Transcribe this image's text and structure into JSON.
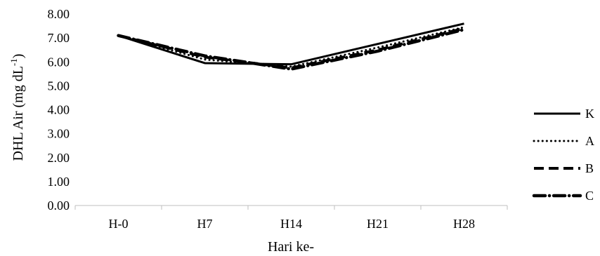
{
  "chart_data": {
    "type": "line",
    "title": "",
    "xlabel": "Hari ke-",
    "ylabel": "DHL Air (mg dL",
    "ylabel_sup": "-1",
    "ylabel_close": ")",
    "categories": [
      "H-0",
      "H7",
      "H14",
      "H21",
      "H28"
    ],
    "ylim": [
      0,
      8
    ],
    "yticks": [
      "0.00",
      "1.00",
      "2.00",
      "3.00",
      "4.00",
      "5.00",
      "6.00",
      "7.00",
      "8.00"
    ],
    "grid": false,
    "legend_position": "right",
    "series": [
      {
        "name": "K",
        "values": [
          7.1,
          5.95,
          5.9,
          6.75,
          7.6
        ],
        "color": "#000000",
        "style": "solid"
      },
      {
        "name": "A",
        "values": [
          7.1,
          6.1,
          5.8,
          6.6,
          7.45
        ],
        "color": "#000000",
        "style": "dotted"
      },
      {
        "name": "B",
        "values": [
          7.1,
          6.2,
          5.75,
          6.5,
          7.4
        ],
        "color": "#000000",
        "style": "dashed"
      },
      {
        "name": "C",
        "values": [
          7.1,
          6.25,
          5.7,
          6.45,
          7.35
        ],
        "color": "#000000",
        "style": "dashdot"
      }
    ]
  }
}
